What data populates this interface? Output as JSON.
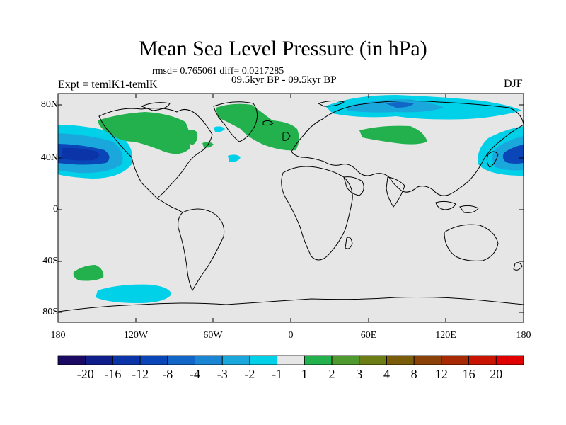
{
  "title": "Mean Sea Level Pressure (in hPa)",
  "stats": "rmsd= 0.765061 diff= 0.0217285",
  "period": "09.5kyr BP - 09.5kyr BP",
  "experiment": "Expt = temlK1-temlK",
  "season": "DJF",
  "axes": {
    "y_ticks": [
      "80N",
      "40N",
      "0",
      "40S",
      "80S"
    ],
    "x_ticks": [
      "180",
      "120W",
      "60W",
      "0",
      "60E",
      "120E",
      "180"
    ]
  },
  "colors": {
    "land_ocean_background": "#e6e6e6",
    "coastline": "#000000",
    "positive_anomaly": "#22b14c",
    "negative_light": "#00dde8",
    "negative_mid": "#00a2d2",
    "negative_strong": "#0066c0",
    "negative_core": "#0a3aa8"
  },
  "colorbar": {
    "labels": [
      "-20",
      "-16",
      "-12",
      "-8",
      "-4",
      "-3",
      "-2",
      "-1",
      "1",
      "2",
      "3",
      "4",
      "8",
      "12",
      "16",
      "20"
    ],
    "colors": [
      "#1a0a63",
      "#101e8c",
      "#0a34a8",
      "#0b46b8",
      "#1166c8",
      "#1a86d3",
      "#1aa8dc",
      "#00d0e8",
      "#e6e6e6",
      "#22b14c",
      "#4e9a2e",
      "#6b7d14",
      "#7a5c0a",
      "#8a4208",
      "#a82a04",
      "#c81400",
      "#e00000"
    ]
  }
}
